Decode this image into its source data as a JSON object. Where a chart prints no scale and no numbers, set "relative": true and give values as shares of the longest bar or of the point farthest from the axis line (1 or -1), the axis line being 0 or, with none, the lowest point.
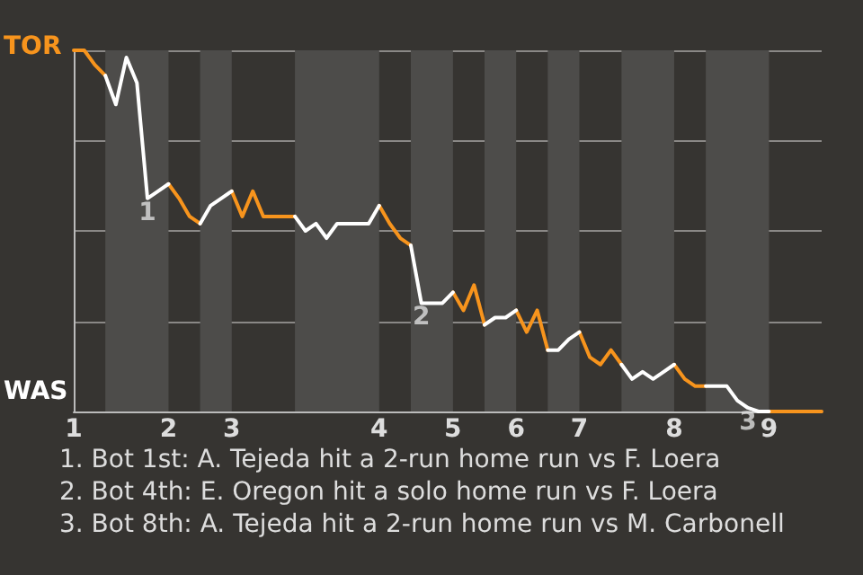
{
  "chart_data": {
    "type": "line",
    "relative": true,
    "categories": [
      "1",
      null,
      null,
      null,
      null,
      null,
      null,
      null,
      null,
      "2",
      null,
      null,
      null,
      null,
      null,
      "3",
      null,
      null,
      null,
      null,
      null,
      null,
      null,
      null,
      null,
      null,
      null,
      null,
      null,
      "4",
      null,
      null,
      null,
      null,
      null,
      null,
      "5",
      null,
      null,
      null,
      null,
      null,
      "6",
      null,
      null,
      null,
      null,
      null,
      "7",
      null,
      null,
      null,
      null,
      null,
      null,
      null,
      null,
      "8",
      null,
      null,
      null,
      null,
      null,
      null,
      null,
      null,
      "9",
      null,
      null,
      null,
      null,
      null
    ],
    "grid": "y",
    "marker": "none",
    "line_style": "solid",
    "series": [
      {
        "name": "TOR",
        "color": "#f7941d",
        "values": [
          1,
          1,
          0.96,
          0.93,
          null,
          null,
          null,
          null,
          null,
          0.63,
          0.59,
          0.54,
          0.52,
          null,
          null,
          0.61,
          0.54,
          0.61,
          0.54,
          0.54,
          0.54,
          0.54,
          null,
          null,
          null,
          null,
          null,
          null,
          null,
          0.57,
          0.52,
          0.48,
          0.46,
          null,
          null,
          null,
          0.33,
          0.28,
          0.35,
          0.24,
          null,
          null,
          0.28,
          0.22,
          0.28,
          0.17,
          null,
          null,
          0.22,
          0.15,
          0.13,
          0.17,
          0.13,
          null,
          null,
          null,
          null,
          0.13,
          0.09,
          0.07,
          0.07,
          null,
          null,
          null,
          null,
          null,
          0,
          0,
          0,
          0,
          0,
          0
        ]
      },
      {
        "name": "WAS",
        "color": "#ffffff",
        "values": [
          null,
          null,
          null,
          0.93,
          0.85,
          0.98,
          0.91,
          0.59,
          0.61,
          0.63,
          null,
          null,
          0.52,
          0.57,
          0.59,
          0.61,
          null,
          null,
          null,
          null,
          null,
          0.54,
          0.5,
          0.52,
          0.48,
          0.52,
          0.52,
          0.52,
          0.52,
          0.57,
          null,
          null,
          0.46,
          0.3,
          0.3,
          0.3,
          0.33,
          null,
          null,
          0.24,
          0.26,
          0.26,
          0.28,
          null,
          null,
          0.17,
          0.17,
          0.2,
          0.22,
          null,
          null,
          null,
          0.13,
          0.09,
          0.11,
          0.09,
          0.11,
          0.13,
          null,
          null,
          0.07,
          0.07,
          0.07,
          0.03,
          0.01,
          0,
          0,
          null,
          null,
          null,
          null,
          null
        ]
      }
    ],
    "annotations": [
      {
        "text": "1",
        "y": 0.59
      },
      {
        "text": "2",
        "y": 0.3
      },
      {
        "text": "3",
        "y": 0.01
      },
      "1. Bot 1st: A. Tejeda hit a 2-run home run vs F. Loera",
      "2. Bot 4th: E. Oregon hit a solo home run vs F. Loera",
      "3. Bot 8th: A. Tejeda hit a 2-run home run vs M. Carbonell"
    ]
  }
}
